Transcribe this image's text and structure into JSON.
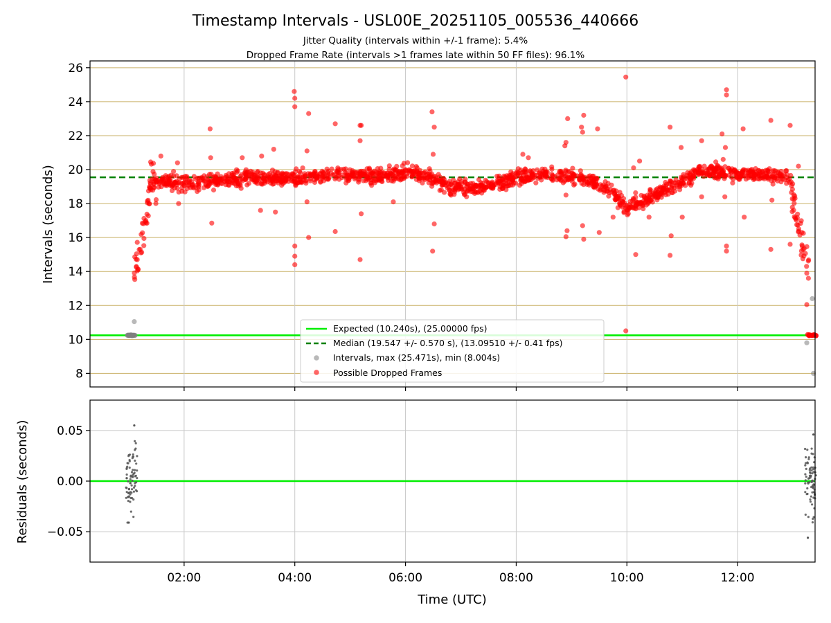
{
  "chart_data": {
    "type": "scatter",
    "title": "Timestamp Intervals - USL00E_20251105_005536_440666",
    "subtitle_1": "Jitter Quality (intervals within +/-1 frame): 5.4%",
    "subtitle_2": "Dropped Frame Rate (intervals >1 frames late within 50 FF files): 96.1%",
    "xlabel": "Time (UTC)",
    "x_ticks": [
      "02:00",
      "04:00",
      "06:00",
      "08:00",
      "10:00",
      "12:00"
    ],
    "xlim_hours": [
      0.3,
      13.4
    ],
    "top_panel": {
      "ylabel": "Intervals (seconds)",
      "ylim": [
        7.2,
        26.4
      ],
      "y_ticks": [
        "8",
        "10",
        "12",
        "14",
        "16",
        "18",
        "20",
        "22",
        "24",
        "26"
      ],
      "expected_interval": 10.24,
      "median_interval": 19.547,
      "legend": {
        "location": "lower center",
        "entries": [
          "Expected (10.240s), (25.00000 fps)",
          "Median (19.547 +/- 0.570 s), (13.09510 +/- 0.41 fps)",
          "Intervals, max (25.471s), min (8.004s)",
          "Possible Dropped Frames"
        ]
      },
      "series_note": "red = possible dropped frames, trend follows the envelope below with scattered outliers",
      "dropped_trend": [
        [
          1.1,
          14.2
        ],
        [
          1.2,
          15.5
        ],
        [
          1.3,
          17.0
        ],
        [
          1.4,
          19.2
        ],
        [
          1.6,
          19.3
        ],
        [
          2.0,
          19.2
        ],
        [
          2.5,
          19.3
        ],
        [
          3.0,
          19.5
        ],
        [
          3.5,
          19.5
        ],
        [
          4.0,
          19.5
        ],
        [
          4.5,
          19.7
        ],
        [
          5.0,
          19.7
        ],
        [
          5.5,
          19.6
        ],
        [
          6.0,
          19.8
        ],
        [
          6.4,
          19.6
        ],
        [
          6.8,
          19.0
        ],
        [
          7.2,
          18.9
        ],
        [
          7.6,
          19.1
        ],
        [
          8.0,
          19.6
        ],
        [
          8.5,
          19.7
        ],
        [
          9.0,
          19.6
        ],
        [
          9.4,
          19.3
        ],
        [
          9.7,
          18.8
        ],
        [
          10.0,
          17.7
        ],
        [
          10.3,
          18.2
        ],
        [
          10.7,
          18.8
        ],
        [
          11.0,
          19.3
        ],
        [
          11.3,
          19.9
        ],
        [
          11.6,
          19.9
        ],
        [
          12.0,
          19.7
        ],
        [
          12.5,
          19.7
        ],
        [
          12.9,
          19.6
        ],
        [
          13.0,
          18.3
        ],
        [
          13.1,
          16.5
        ],
        [
          13.2,
          15.0
        ],
        [
          13.3,
          14.2
        ]
      ],
      "dropped_outliers": [
        [
          1.58,
          20.8
        ],
        [
          1.88,
          20.4
        ],
        [
          1.9,
          18.0
        ],
        [
          2.47,
          22.4
        ],
        [
          2.48,
          20.7
        ],
        [
          2.5,
          16.85
        ],
        [
          3.05,
          20.7
        ],
        [
          3.38,
          17.6
        ],
        [
          3.4,
          20.8
        ],
        [
          3.62,
          21.2
        ],
        [
          3.65,
          17.5
        ],
        [
          3.99,
          24.6
        ],
        [
          4.0,
          24.2
        ],
        [
          4.0,
          23.7
        ],
        [
          4.0,
          15.5
        ],
        [
          4.0,
          14.9
        ],
        [
          4.0,
          14.4
        ],
        [
          4.22,
          18.1
        ],
        [
          4.22,
          21.1
        ],
        [
          4.25,
          23.3
        ],
        [
          4.25,
          16.0
        ],
        [
          4.73,
          22.7
        ],
        [
          4.73,
          16.35
        ],
        [
          5.18,
          22.6
        ],
        [
          5.2,
          22.6
        ],
        [
          5.18,
          21.7
        ],
        [
          5.2,
          17.4
        ],
        [
          5.18,
          14.7
        ],
        [
          5.78,
          18.1
        ],
        [
          6.48,
          23.4
        ],
        [
          6.52,
          22.5
        ],
        [
          6.5,
          20.9
        ],
        [
          6.52,
          16.8
        ],
        [
          6.49,
          15.2
        ],
        [
          8.12,
          20.9
        ],
        [
          8.22,
          20.7
        ],
        [
          8.88,
          21.4
        ],
        [
          8.9,
          21.6
        ],
        [
          8.9,
          18.5
        ],
        [
          8.92,
          16.4
        ],
        [
          8.93,
          23.0
        ],
        [
          8.9,
          16.05
        ],
        [
          9.18,
          22.5
        ],
        [
          9.2,
          22.2
        ],
        [
          9.22,
          23.2
        ],
        [
          9.2,
          16.7
        ],
        [
          9.22,
          15.9
        ],
        [
          9.47,
          22.4
        ],
        [
          9.5,
          16.3
        ],
        [
          9.75,
          17.2
        ],
        [
          9.98,
          25.45
        ],
        [
          9.98,
          10.5
        ],
        [
          10.12,
          20.1
        ],
        [
          10.23,
          20.5
        ],
        [
          10.16,
          15.0
        ],
        [
          10.4,
          17.2
        ],
        [
          10.78,
          22.5
        ],
        [
          10.8,
          16.1
        ],
        [
          10.78,
          14.95
        ],
        [
          10.98,
          21.3
        ],
        [
          11.0,
          17.2
        ],
        [
          11.35,
          21.7
        ],
        [
          11.35,
          18.4
        ],
        [
          11.72,
          22.1
        ],
        [
          11.74,
          20.6
        ],
        [
          11.78,
          21.3
        ],
        [
          11.8,
          24.7
        ],
        [
          11.8,
          24.4
        ],
        [
          11.8,
          15.5
        ],
        [
          11.8,
          15.2
        ],
        [
          11.77,
          18.4
        ],
        [
          12.1,
          22.4
        ],
        [
          12.12,
          17.2
        ],
        [
          12.6,
          22.9
        ],
        [
          12.62,
          18.2
        ],
        [
          12.6,
          15.3
        ],
        [
          12.95,
          22.6
        ],
        [
          12.95,
          15.6
        ],
        [
          13.1,
          20.2
        ],
        [
          13.25,
          13.9
        ],
        [
          13.28,
          13.6
        ],
        [
          13.25,
          12.05
        ]
      ],
      "dropped_near_expected": {
        "x_range": [
          13.25,
          13.42
        ],
        "value": 10.25
      },
      "interval_points": [
        {
          "x_range": [
            0.95,
            1.12
          ],
          "value": 10.24
        },
        {
          "x": 1.1,
          "value": 11.05
        },
        {
          "x": 13.25,
          "value": 9.8
        },
        {
          "x": 13.35,
          "value": 12.4
        },
        {
          "x": 13.37,
          "value": 8.0
        }
      ]
    },
    "bottom_panel": {
      "ylabel": "Residuals (seconds)",
      "ylim": [
        -0.08,
        0.08
      ],
      "y_ticks": [
        "0.05",
        "0.00",
        "−0.05"
      ],
      "y_tick_values": [
        0.05,
        0.0,
        -0.05
      ],
      "zero_line": 0.0,
      "residual_clusters": [
        {
          "x_range": [
            0.95,
            1.15
          ],
          "y_range": [
            -0.041,
            0.055
          ]
        },
        {
          "x_range": [
            13.22,
            13.42
          ],
          "y_range": [
            -0.056,
            0.046
          ]
        }
      ]
    },
    "colors": {
      "expected_line": "#00ee00",
      "median_line": "#008000",
      "dropped_marker": "#ff0000",
      "interval_marker": "#808080",
      "residual_marker": "#555555",
      "y_grid": "#c9b067",
      "x_grid": "#c8c8c8"
    }
  }
}
